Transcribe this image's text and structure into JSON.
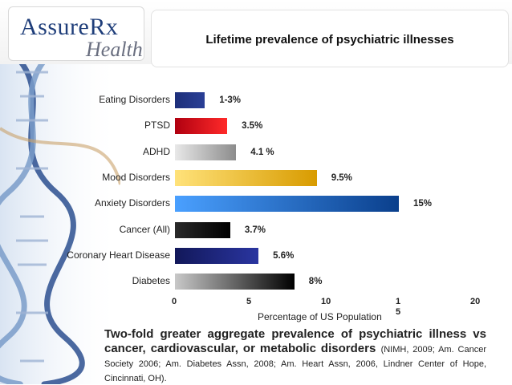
{
  "header": {
    "logo_text_1": "AssureRx",
    "logo_text_2": "Health",
    "title": "Lifetime prevalence of psychiatric illnesses"
  },
  "chart_data": {
    "type": "bar",
    "orientation": "horizontal",
    "title": "Lifetime prevalence of psychiatric illnesses",
    "xlabel": "Percentage of US Population",
    "xlim": [
      0,
      20
    ],
    "x_ticks": [
      "0",
      "5",
      "10",
      "1\n5",
      "20"
    ],
    "x_tick_values": [
      0,
      5,
      10,
      15,
      20
    ],
    "grid": false,
    "categories": [
      "Eating Disorders",
      "PTSD",
      "ADHD",
      "Mood Disorders",
      "Anxiety Disorders",
      "Cancer (All)",
      "Coronary Heart Disease",
      "Diabetes"
    ],
    "values": [
      2,
      3.5,
      4.1,
      9.5,
      15,
      3.7,
      5.6,
      8
    ],
    "labels": [
      "1-3%",
      "3.5%",
      "4.1 %",
      "9.5%",
      "15%",
      "3.7%",
      "5.6%",
      "8%"
    ],
    "colors": [
      "#1d2f7a",
      "#e0141c",
      "#a8a8a8",
      "#f2b705",
      "#1a63c0",
      "#111111",
      "#1c2470",
      "#333333"
    ],
    "gradients": [
      [
        "#1d2f7a",
        "#2a3f96"
      ],
      [
        "#b00010",
        "#ff2a2a"
      ],
      [
        "#e8e8e8",
        "#8c8c8c"
      ],
      [
        "#ffe27a",
        "#d89b00"
      ],
      [
        "#4aa0ff",
        "#0a3f8c"
      ],
      [
        "#2a2a2a",
        "#000000"
      ],
      [
        "#12185a",
        "#2a35a0"
      ],
      [
        "#c8c8c8",
        "#000000"
      ]
    ]
  },
  "footnote": {
    "main": "Two-fold greater aggregate prevalence of psychiatric illness vs cancer, cardiovascular, or metabolic disorders",
    "cite": "(NIMH, 2009; Am. Cancer Society 2006; Am. Diabetes Assn, 2008; Am. Heart Assn, 2006, Lindner Center of Hope, Cincinnati, OH)."
  }
}
